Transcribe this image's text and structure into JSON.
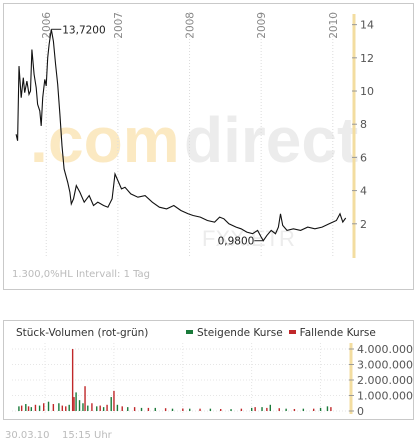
{
  "watermark": {
    "brand_dot": ".",
    "brand_com": "com",
    "brand_direct": "direct",
    "symbol": "FXX.ETR"
  },
  "price_panel": {
    "footer": "1.300,0%HL  Intervall: 1 Tag"
  },
  "volume_panel": {
    "title": "Stück-Volumen (rot-grün)",
    "legend_up_label": "Steigende Kurse",
    "legend_down_label": "Fallende Kurse",
    "colors": {
      "up": "#1a7a3a",
      "down": "#c0282a",
      "accent_bar": "#f3dda0"
    }
  },
  "footer": {
    "date": "30.03.10",
    "time": "15:15 Uhr"
  },
  "chart_data": [
    {
      "type": "line",
      "x_labels": [
        "2006",
        "2007",
        "2008",
        "2009",
        "2010"
      ],
      "y_ticks": [
        "2",
        "4",
        "6",
        "8",
        "10",
        "12",
        "14"
      ],
      "ylim": [
        0.3,
        14.4
      ],
      "xlim": [
        2005.55,
        2010.24
      ],
      "max_label": "13,7200",
      "min_label": "0,9800",
      "max_point": {
        "x": 2006.07,
        "y": 13.72
      },
      "min_point": {
        "x": 2009.03,
        "y": 0.98
      },
      "series": [
        {
          "values": [
            [
              2005.58,
              7.4
            ],
            [
              2005.6,
              7.0
            ],
            [
              2005.62,
              11.5
            ],
            [
              2005.65,
              9.6
            ],
            [
              2005.68,
              10.8
            ],
            [
              2005.7,
              9.9
            ],
            [
              2005.73,
              10.6
            ],
            [
              2005.76,
              9.8
            ],
            [
              2005.78,
              10.0
            ],
            [
              2005.8,
              12.5
            ],
            [
              2005.83,
              11.0
            ],
            [
              2005.86,
              10.2
            ],
            [
              2005.88,
              9.2
            ],
            [
              2005.91,
              8.8
            ],
            [
              2005.93,
              7.9
            ],
            [
              2005.95,
              9.6
            ],
            [
              2005.98,
              10.7
            ],
            [
              2006.0,
              10.3
            ],
            [
              2006.02,
              12.0
            ],
            [
              2006.04,
              12.8
            ],
            [
              2006.07,
              13.72
            ],
            [
              2006.1,
              13.0
            ],
            [
              2006.13,
              11.6
            ],
            [
              2006.16,
              10.4
            ],
            [
              2006.19,
              8.6
            ],
            [
              2006.22,
              6.7
            ],
            [
              2006.25,
              5.3
            ],
            [
              2006.3,
              4.5
            ],
            [
              2006.33,
              3.9
            ],
            [
              2006.35,
              3.2
            ],
            [
              2006.38,
              3.5
            ],
            [
              2006.42,
              4.3
            ],
            [
              2006.47,
              3.9
            ],
            [
              2006.53,
              3.3
            ],
            [
              2006.6,
              3.7
            ],
            [
              2006.66,
              3.1
            ],
            [
              2006.72,
              3.3
            ],
            [
              2006.8,
              3.1
            ],
            [
              2006.86,
              3.0
            ],
            [
              2006.92,
              3.5
            ],
            [
              2006.96,
              5.0
            ],
            [
              2007.0,
              4.6
            ],
            [
              2007.05,
              4.1
            ],
            [
              2007.1,
              4.2
            ],
            [
              2007.18,
              3.8
            ],
            [
              2007.28,
              3.6
            ],
            [
              2007.38,
              3.7
            ],
            [
              2007.48,
              3.3
            ],
            [
              2007.58,
              3.0
            ],
            [
              2007.68,
              2.9
            ],
            [
              2007.78,
              3.1
            ],
            [
              2007.88,
              2.8
            ],
            [
              2007.98,
              2.6
            ],
            [
              2008.05,
              2.5
            ],
            [
              2008.15,
              2.4
            ],
            [
              2008.25,
              2.2
            ],
            [
              2008.35,
              2.1
            ],
            [
              2008.42,
              2.4
            ],
            [
              2008.48,
              2.3
            ],
            [
              2008.55,
              2.0
            ],
            [
              2008.65,
              1.8
            ],
            [
              2008.72,
              1.7
            ],
            [
              2008.8,
              1.5
            ],
            [
              2008.88,
              1.4
            ],
            [
              2008.95,
              1.6
            ],
            [
              2009.0,
              1.2
            ],
            [
              2009.03,
              0.98
            ],
            [
              2009.08,
              1.3
            ],
            [
              2009.14,
              1.6
            ],
            [
              2009.2,
              1.4
            ],
            [
              2009.24,
              1.8
            ],
            [
              2009.27,
              2.6
            ],
            [
              2009.3,
              1.9
            ],
            [
              2009.36,
              1.6
            ],
            [
              2009.45,
              1.7
            ],
            [
              2009.55,
              1.6
            ],
            [
              2009.65,
              1.8
            ],
            [
              2009.75,
              1.7
            ],
            [
              2009.85,
              1.8
            ],
            [
              2009.95,
              2.0
            ],
            [
              2010.05,
              2.2
            ],
            [
              2010.1,
              2.6
            ],
            [
              2010.14,
              2.1
            ],
            [
              2010.18,
              2.35
            ]
          ]
        }
      ]
    },
    {
      "type": "bar",
      "y_ticks": [
        "0",
        "1.000.000",
        "2.000.000",
        "3.000.000",
        "4.000.000"
      ],
      "ylim": [
        0,
        4000000
      ],
      "series": [
        {
          "name": "Steigende Kurse",
          "values": [
            [
              2005.62,
              300000
            ],
            [
              2005.72,
              450000
            ],
            [
              2005.8,
              250000
            ],
            [
              2005.92,
              350000
            ],
            [
              2006.05,
              600000
            ],
            [
              2006.2,
              500000
            ],
            [
              2006.35,
              400000
            ],
            [
              2006.45,
              1200000
            ],
            [
              2006.5,
              700000
            ],
            [
              2006.55,
              500000
            ],
            [
              2006.62,
              350000
            ],
            [
              2006.75,
              300000
            ],
            [
              2006.85,
              250000
            ],
            [
              2006.96,
              900000
            ],
            [
              2007.05,
              400000
            ],
            [
              2007.2,
              250000
            ],
            [
              2007.4,
              200000
            ],
            [
              2007.6,
              200000
            ],
            [
              2007.85,
              150000
            ],
            [
              2008.1,
              150000
            ],
            [
              2008.4,
              150000
            ],
            [
              2008.7,
              120000
            ],
            [
              2009.0,
              200000
            ],
            [
              2009.15,
              250000
            ],
            [
              2009.27,
              400000
            ],
            [
              2009.5,
              150000
            ],
            [
              2009.75,
              150000
            ],
            [
              2010.0,
              200000
            ],
            [
              2010.1,
              300000
            ]
          ]
        },
        {
          "name": "Fallende Kurse",
          "values": [
            [
              2005.66,
              350000
            ],
            [
              2005.76,
              300000
            ],
            [
              2005.86,
              400000
            ],
            [
              2005.98,
              500000
            ],
            [
              2006.12,
              450000
            ],
            [
              2006.25,
              350000
            ],
            [
              2006.3,
              300000
            ],
            [
              2006.4,
              4000000
            ],
            [
              2006.42,
              900000
            ],
            [
              2006.58,
              1600000
            ],
            [
              2006.68,
              500000
            ],
            [
              2006.8,
              350000
            ],
            [
              2006.9,
              400000
            ],
            [
              2007.0,
              1300000
            ],
            [
              2007.12,
              300000
            ],
            [
              2007.3,
              250000
            ],
            [
              2007.5,
              200000
            ],
            [
              2007.75,
              180000
            ],
            [
              2008.0,
              160000
            ],
            [
              2008.25,
              150000
            ],
            [
              2008.55,
              130000
            ],
            [
              2008.85,
              150000
            ],
            [
              2009.05,
              250000
            ],
            [
              2009.22,
              200000
            ],
            [
              2009.4,
              180000
            ],
            [
              2009.62,
              130000
            ],
            [
              2009.9,
              150000
            ],
            [
              2010.15,
              250000
            ]
          ]
        }
      ]
    }
  ]
}
